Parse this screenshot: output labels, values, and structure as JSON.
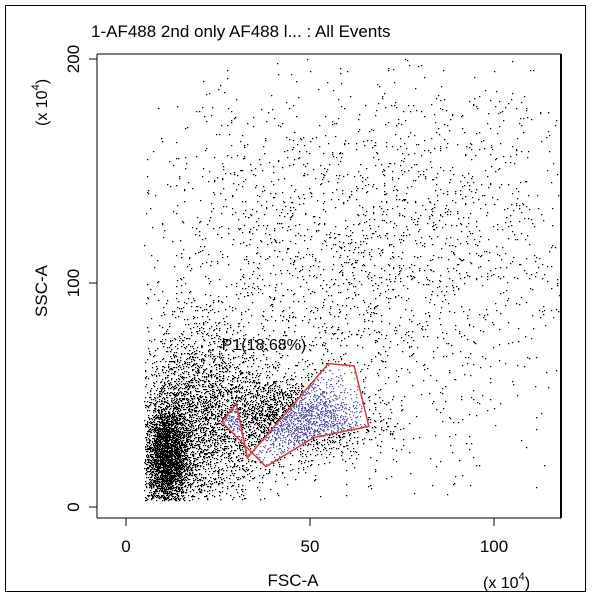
{
  "chart_data": {
    "type": "scatter",
    "title": "1-AF488 2nd only AF488 l... : All Events",
    "xlabel": "FSC-A",
    "ylabel": "SSC-A",
    "x_multiplier_label": "(x 10",
    "x_multiplier_exp": "4",
    "x_multiplier_close": ")",
    "y_multiplier_label": "(x 10",
    "y_multiplier_exp": "4",
    "y_multiplier_close": ")",
    "xlim": [
      0,
      120
    ],
    "ylim": [
      0,
      200
    ],
    "x_ticks": [
      0,
      50,
      100
    ],
    "y_ticks": [
      0,
      100,
      200
    ],
    "x_tick_labels": [
      "0",
      "50",
      "100"
    ],
    "y_tick_labels": [
      "0",
      "100",
      "200"
    ],
    "grid": false,
    "point_color": "#000000",
    "gated_point_color": "#5b5ba8",
    "gate": {
      "name": "P1(18.68%)",
      "color": "#d23c3c",
      "polygon": [
        [
          33,
          22
        ],
        [
          55,
          64
        ],
        [
          62,
          63
        ],
        [
          66,
          36
        ],
        [
          51,
          31
        ],
        [
          38,
          18
        ],
        [
          26,
          38
        ],
        [
          30,
          46
        ]
      ]
    },
    "populations": [
      {
        "cx": 11,
        "cy": 22,
        "sx": 3,
        "sy": 12,
        "n": 3500
      },
      {
        "cx": 20,
        "cy": 40,
        "sx": 9,
        "sy": 20,
        "n": 3000
      },
      {
        "cx": 45,
        "cy": 40,
        "sx": 10,
        "sy": 9,
        "n": 2200
      },
      {
        "cx": 55,
        "cy": 100,
        "sx": 30,
        "sy": 45,
        "n": 2200
      },
      {
        "cx": 90,
        "cy": 135,
        "sx": 25,
        "sy": 35,
        "n": 600
      }
    ]
  }
}
